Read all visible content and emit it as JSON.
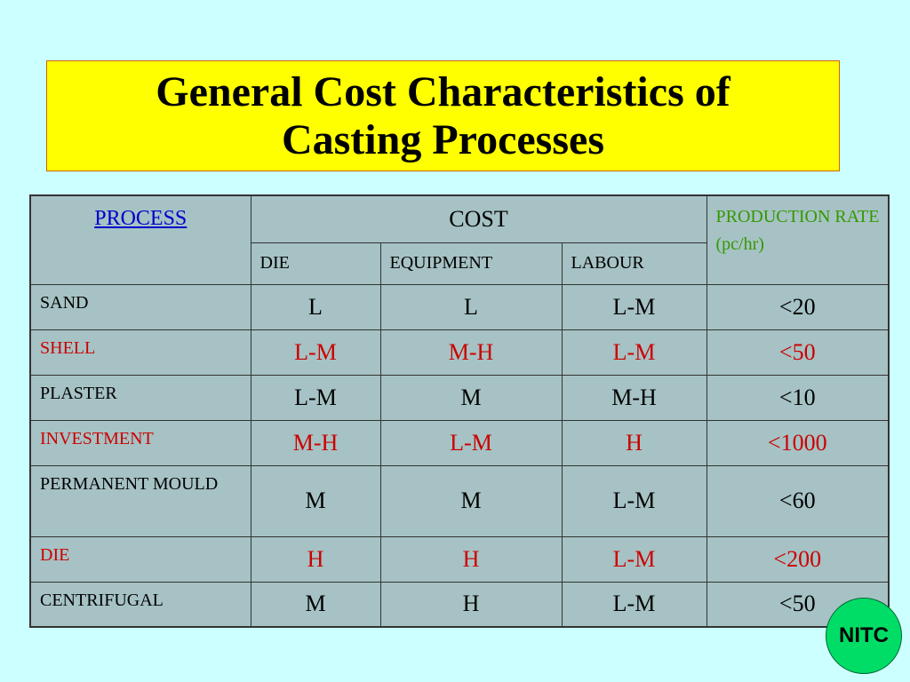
{
  "slide": {
    "title_line1": "General Cost Characteristics of",
    "title_line2": "Casting Processes",
    "logo_text": "NITC"
  },
  "table": {
    "headers": {
      "process": "PROCESS",
      "cost": "COST",
      "production_rate": "PRODUCTION RATE (pc/hr)",
      "die": "DIE",
      "equipment": "EQUIPMENT",
      "labour": "LABOUR"
    },
    "rows": [
      {
        "process": "SAND",
        "die": "L",
        "equipment": "L",
        "labour": "L-M",
        "rate": "<20"
      },
      {
        "process": "SHELL",
        "die": "L-M",
        "equipment": "M-H",
        "labour": "L-M",
        "rate": "<50"
      },
      {
        "process": "PLASTER",
        "die": "L-M",
        "equipment": "M",
        "labour": "M-H",
        "rate": "<10"
      },
      {
        "process": "INVESTMENT",
        "die": "M-H",
        "equipment": "L-M",
        "labour": "H",
        "rate": "<1000"
      },
      {
        "process": "PERMANENT MOULD",
        "die": "M",
        "equipment": "M",
        "labour": "L-M",
        "rate": "<60"
      },
      {
        "process": "DIE",
        "die": "H",
        "equipment": "H",
        "labour": "L-M",
        "rate": "<200"
      },
      {
        "process": "CENTRIFUGAL",
        "die": "M",
        "equipment": "H",
        "labour": "L-M",
        "rate": "<50"
      }
    ]
  },
  "colors": {
    "background": "#ccffff",
    "title_box": "#ffff00",
    "table_fill": "#a6c2c4",
    "process_header": "#0000cc",
    "rate_header": "#339900",
    "highlight_row_text": "#cc0000",
    "logo_fill": "#00dd66"
  }
}
